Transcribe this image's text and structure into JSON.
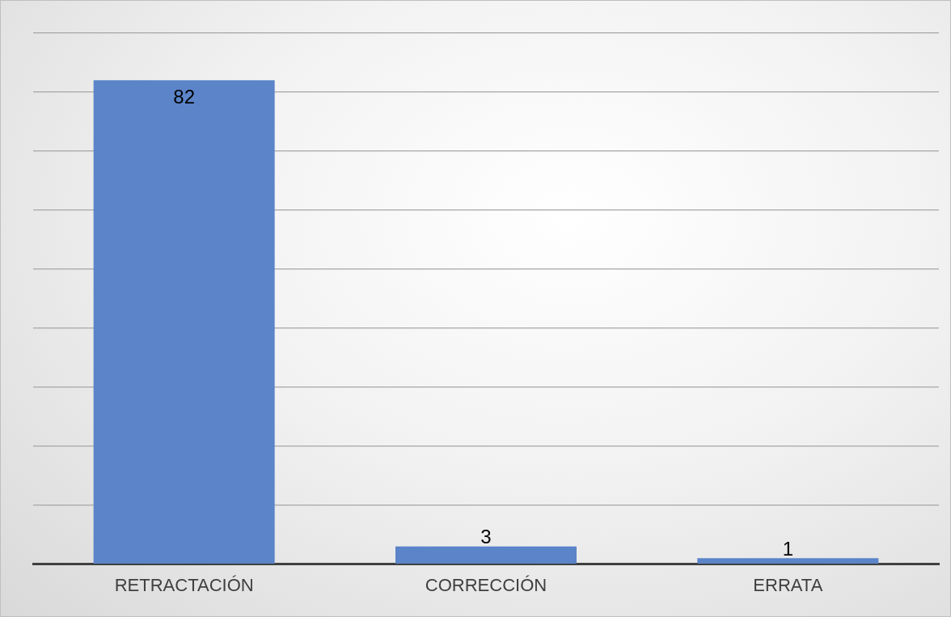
{
  "chart_data": {
    "type": "bar",
    "categories": [
      "RETRACTACIÓN",
      "CORRECCIÓN",
      "ERRATA"
    ],
    "values": [
      82,
      3,
      1
    ],
    "color": "#5b84c9",
    "data_labels": true,
    "ylim": [
      0,
      90
    ],
    "yticks": [
      {
        "value": 0,
        "label": null
      },
      {
        "value": 10,
        "label": null
      },
      {
        "value": 20,
        "label": null
      },
      {
        "value": 30,
        "label": null
      },
      {
        "value": 40,
        "label": null
      },
      {
        "value": 50,
        "label": null
      },
      {
        "value": 60,
        "label": null
      },
      {
        "value": 70,
        "label": null
      },
      {
        "value": 80,
        "label": null
      },
      {
        "value": 90,
        "label": null
      }
    ],
    "tick_labels": "x",
    "grid": "y",
    "legend": false
  }
}
